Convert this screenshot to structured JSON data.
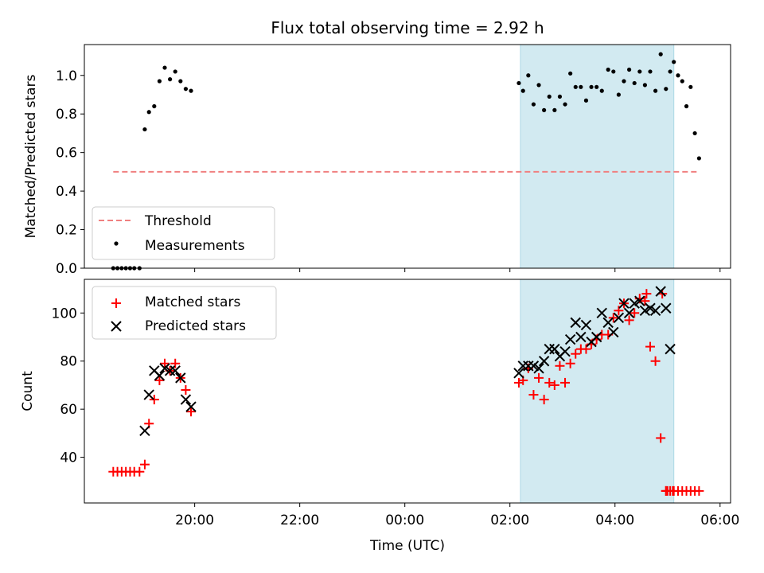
{
  "chart_data": [
    {
      "type": "scatter",
      "title": "Flux total observing time = 2.92 h",
      "xlabel": "",
      "ylabel": "Matched/Predicted stars",
      "x_axis": "time (hours UTC)",
      "xlim": [
        17.9,
        30.2
      ],
      "ylim": [
        0.0,
        1.16
      ],
      "yticks": [
        0.0,
        0.2,
        0.4,
        0.6,
        0.8,
        1.0
      ],
      "xtick_labels": [
        "20:00",
        "22:00",
        "00:00",
        "02:00",
        "04:00",
        "06:00"
      ],
      "xticks": [
        20,
        22,
        24,
        26,
        28,
        30
      ],
      "shaded_interval": [
        26.2,
        29.12
      ],
      "threshold": {
        "name": "Threshold",
        "y": 0.5,
        "x_range": [
          18.45,
          29.6
        ],
        "color": "#f08080"
      },
      "series": [
        {
          "name": "Measurements",
          "marker": "dot",
          "color": "#000000",
          "x": [
            18.45,
            18.53,
            18.61,
            18.69,
            18.77,
            18.85,
            18.95,
            19.05,
            19.13,
            19.23,
            19.33,
            19.43,
            19.53,
            19.63,
            19.73,
            19.83,
            19.93,
            26.17,
            26.25,
            26.35,
            26.45,
            26.55,
            26.65,
            26.75,
            26.85,
            26.95,
            27.05,
            27.15,
            27.25,
            27.35,
            27.45,
            27.55,
            27.65,
            27.75,
            27.87,
            27.97,
            28.07,
            28.17,
            28.27,
            28.37,
            28.47,
            28.57,
            28.67,
            28.77,
            28.87,
            28.97,
            29.05,
            29.12,
            29.2,
            29.28,
            29.36,
            29.44,
            29.52,
            29.6
          ],
          "y": [
            0.0,
            0.0,
            0.0,
            0.0,
            0.0,
            0.0,
            0.0,
            0.72,
            0.81,
            0.84,
            0.97,
            1.04,
            0.98,
            1.02,
            0.97,
            0.93,
            0.92,
            0.96,
            0.92,
            1.0,
            0.85,
            0.95,
            0.82,
            0.89,
            0.82,
            0.89,
            0.85,
            1.01,
            0.94,
            0.94,
            0.87,
            0.94,
            0.94,
            0.92,
            1.03,
            1.02,
            0.9,
            0.97,
            1.03,
            0.96,
            1.02,
            0.95,
            1.02,
            0.92,
            1.11,
            0.93,
            1.02,
            1.07,
            1.0,
            0.97,
            0.84,
            0.94,
            0.7,
            0.57
          ]
        }
      ],
      "legend": {
        "placement": "lower-left",
        "entries": [
          "Threshold",
          "Measurements"
        ]
      },
      "grid": false
    },
    {
      "type": "scatter",
      "title": "",
      "xlabel": "Time (UTC)",
      "ylabel": "Count",
      "xlim": [
        17.9,
        30.2
      ],
      "ylim": [
        21,
        114
      ],
      "yticks": [
        40,
        60,
        80,
        100
      ],
      "xtick_labels": [
        "20:00",
        "22:00",
        "00:00",
        "02:00",
        "04:00",
        "06:00"
      ],
      "xticks": [
        20,
        22,
        24,
        26,
        28,
        30
      ],
      "shaded_interval": [
        26.2,
        29.12
      ],
      "series": [
        {
          "name": "Matched stars",
          "marker": "plus",
          "color": "#ff0000",
          "x": [
            18.45,
            18.53,
            18.61,
            18.69,
            18.77,
            18.85,
            18.95,
            19.05,
            19.13,
            19.23,
            19.33,
            19.43,
            19.53,
            19.63,
            19.73,
            19.83,
            19.93,
            26.17,
            26.25,
            26.35,
            26.45,
            26.55,
            26.65,
            26.75,
            26.85,
            26.95,
            27.05,
            27.15,
            27.25,
            27.35,
            27.45,
            27.55,
            27.65,
            27.75,
            27.87,
            27.97,
            28.07,
            28.17,
            28.27,
            28.37,
            28.47,
            28.57,
            28.67,
            28.77,
            28.87,
            28.97,
            29.05,
            29.12,
            29.2,
            29.28,
            29.36,
            29.44,
            29.52,
            29.6,
            29.1,
            29.0,
            28.97,
            28.6,
            28.9
          ],
          "y": [
            34,
            34,
            34,
            34,
            34,
            34,
            34,
            37,
            54,
            64,
            72,
            79,
            76,
            79,
            73,
            68,
            59,
            71,
            72,
            77,
            66,
            73,
            64,
            71,
            70,
            78,
            71,
            79,
            83,
            85,
            85,
            87,
            89,
            91,
            91,
            98,
            101,
            104,
            97,
            100,
            106,
            105,
            86,
            80,
            48,
            26,
            26,
            26,
            26,
            26,
            26,
            26,
            26,
            26,
            26,
            26,
            26,
            108,
            108
          ],
          "display_note": ""
        },
        {
          "name": "Predicted stars",
          "marker": "x",
          "color": "#000000",
          "x": [
            19.05,
            19.13,
            19.23,
            19.33,
            19.43,
            19.53,
            19.63,
            19.73,
            19.83,
            19.93,
            26.17,
            26.25,
            26.35,
            26.45,
            26.55,
            26.65,
            26.75,
            26.85,
            26.95,
            27.05,
            27.15,
            27.25,
            27.35,
            27.45,
            27.55,
            27.65,
            27.75,
            27.87,
            27.97,
            28.07,
            28.17,
            28.27,
            28.37,
            28.47,
            28.57,
            28.67,
            28.77,
            28.87,
            28.97,
            29.05
          ],
          "y": [
            51,
            66,
            76,
            74,
            77,
            76,
            76,
            73,
            64,
            61,
            75,
            78,
            78,
            78,
            77,
            80,
            85,
            85,
            82,
            84,
            89,
            96,
            90,
            95,
            88,
            90,
            100,
            96,
            92,
            98,
            104,
            100,
            104,
            105,
            101,
            102,
            101,
            109,
            102,
            85
          ],
          "display_note": ""
        }
      ],
      "legend": {
        "placement": "upper-left",
        "entries": [
          "Matched stars",
          "Predicted stars"
        ]
      },
      "grid": false
    }
  ],
  "colors": {
    "shade": "#add8e6",
    "threshold": "#f08080",
    "matched": "#ff0000",
    "predicted": "#000000"
  }
}
